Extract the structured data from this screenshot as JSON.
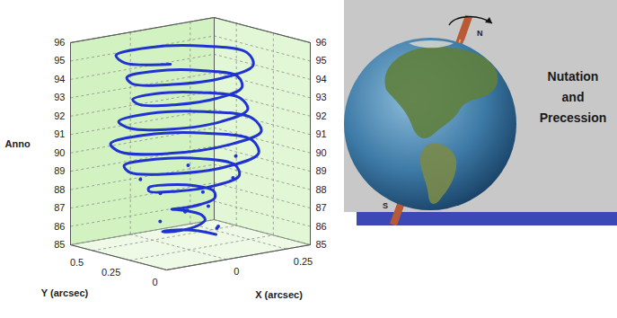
{
  "chart_data": {
    "type": "line3d",
    "xlabel": "X (arcsec)",
    "ylabel": "Y (arcsec)",
    "zlabel": "Anno",
    "xlim": [
      -0.25,
      0.35
    ],
    "xticks": [
      0,
      0.25
    ],
    "ylim": [
      0,
      0.65
    ],
    "yticks": [
      0,
      0.25,
      0.5
    ],
    "zlim": [
      85,
      96
    ],
    "zticks": [
      85,
      86,
      87,
      88,
      89,
      90,
      91,
      92,
      93,
      94,
      95,
      96
    ],
    "grid": true,
    "series": [
      {
        "type": "line",
        "color": "#1f33d1",
        "x": [
          0.16,
          0.118,
          0.04,
          -0.024,
          -0.045,
          -0.017,
          0.04,
          0.086,
          0.1,
          0.079,
          0.04,
          0.001,
          -0.025,
          -0.017,
          0.04,
          0.111,
          0.15,
          0.125,
          0.04,
          -0.059,
          -0.12,
          -0.08,
          0.04,
          0.174,
          0.24,
          0.188,
          0.04,
          -0.123,
          -0.2,
          -0.137,
          0.04,
          0.224,
          0.31,
          0.231,
          0.04,
          -0.158,
          -0.24,
          -0.158,
          0.04,
          0.231,
          0.31,
          0.224,
          0.04,
          -0.137,
          -0.2,
          -0.13,
          0.04,
          0.196,
          0.26,
          0.188,
          0.04,
          -0.101,
          -0.16,
          -0.101,
          0.04,
          0.181,
          0.25,
          0.188,
          0.04,
          -0.116,
          -0.19,
          -0.123,
          0.04,
          0.21,
          0.29,
          0.217,
          0.04,
          -0.144,
          -0.22,
          -0.144
        ],
        "y": [
          0.33,
          0.408,
          0.43,
          0.394,
          0.33,
          0.273,
          0.26,
          0.284,
          0.33,
          0.369,
          0.38,
          0.369,
          0.33,
          0.273,
          0.24,
          0.259,
          0.33,
          0.415,
          0.46,
          0.429,
          0.33,
          0.21,
          0.15,
          0.196,
          0.33,
          0.478,
          0.55,
          0.493,
          0.33,
          0.153,
          0.07,
          0.146,
          0.33,
          0.521,
          0.61,
          0.528,
          0.33,
          0.132,
          0.06,
          0.139,
          0.33,
          0.514,
          0.59,
          0.507,
          0.33,
          0.16,
          0.1,
          0.174,
          0.33,
          0.478,
          0.54,
          0.471,
          0.33,
          0.189,
          0.13,
          0.189,
          0.33,
          0.478,
          0.55,
          0.486,
          0.33,
          0.167,
          0.09,
          0.16,
          0.33,
          0.507,
          0.59,
          0.514,
          0.33,
          0.146
        ],
        "z": [
          85.3,
          85.45,
          85.6,
          85.75,
          85.9,
          86.05,
          86.2,
          86.35,
          86.5,
          86.65,
          86.8,
          86.95,
          87.1,
          87.25,
          87.4,
          87.55,
          87.7,
          87.85,
          88.0,
          88.15,
          88.3,
          88.45,
          88.6,
          88.75,
          88.9,
          89.05,
          89.2,
          89.35,
          89.5,
          89.65,
          89.8,
          89.95,
          90.1,
          90.25,
          90.4,
          90.55,
          90.7,
          90.85,
          91.0,
          91.15,
          91.3,
          91.45,
          91.6,
          91.75,
          91.9,
          92.05,
          92.2,
          92.35,
          92.5,
          92.65,
          92.8,
          92.95,
          93.1,
          93.25,
          93.4,
          93.55,
          93.7,
          93.85,
          94.0,
          94.15,
          94.3,
          94.45,
          94.6,
          94.75,
          94.9,
          95.05,
          95.2,
          95.35,
          95.5,
          95.65
        ]
      },
      {
        "type": "scatter",
        "marker": "dot",
        "color": "#1f33d1",
        "x": [
          0.17,
          0.12,
          -0.03,
          0.09,
          0.0,
          0.06,
          0.13,
          -0.06,
          0.2,
          -0.1,
          0.05,
          0.15
        ],
        "y": [
          0.34,
          0.25,
          0.4,
          0.41,
          0.28,
          0.22,
          0.37,
          0.35,
          0.28,
          0.42,
          0.34,
          0.18
        ],
        "z": [
          85.6,
          86.0,
          86.3,
          86.6,
          87.0,
          87.3,
          87.6,
          88.0,
          88.4,
          88.7,
          89.3,
          89.9
        ]
      }
    ]
  },
  "illustration": {
    "title_lines": [
      "Nutation",
      "and",
      "Precession"
    ],
    "pole_labels": [
      "N",
      "S"
    ]
  }
}
